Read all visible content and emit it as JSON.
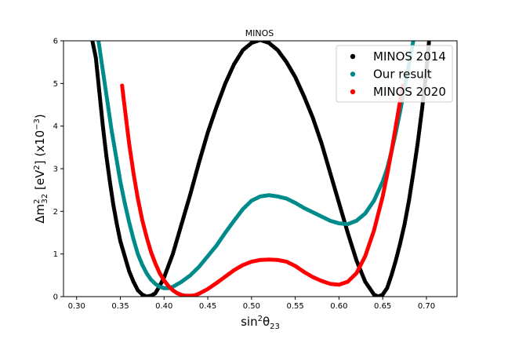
{
  "chart_data": {
    "type": "scatter",
    "title": "MINOS",
    "xlabel": "sin²θ₂₃",
    "ylabel": "Δm²₃₂ [eV²] (x10⁻³)",
    "xlim": [
      0.285,
      0.735
    ],
    "ylim": [
      0,
      6
    ],
    "x_ticks": [
      "0.30",
      "0.35",
      "0.40",
      "0.45",
      "0.50",
      "0.55",
      "0.60",
      "0.65",
      "0.70"
    ],
    "x_tick_values": [
      0.3,
      0.35,
      0.4,
      0.45,
      0.5,
      0.55,
      0.6,
      0.65,
      0.7
    ],
    "y_ticks": [
      "0",
      "1",
      "2",
      "3",
      "4",
      "5",
      "6"
    ],
    "y_tick_values": [
      0,
      1,
      2,
      3,
      4,
      5,
      6
    ],
    "grid": false,
    "legend_position": "top-right",
    "series": [
      {
        "name": "MINOS 2014",
        "color": "#000000",
        "points": [
          [
            0.318,
            6.0
          ],
          [
            0.322,
            5.6
          ],
          [
            0.326,
            4.8
          ],
          [
            0.33,
            4.0
          ],
          [
            0.334,
            3.3
          ],
          [
            0.338,
            2.7
          ],
          [
            0.342,
            2.15
          ],
          [
            0.346,
            1.7
          ],
          [
            0.35,
            1.3
          ],
          [
            0.355,
            0.95
          ],
          [
            0.36,
            0.6
          ],
          [
            0.365,
            0.35
          ],
          [
            0.37,
            0.15
          ],
          [
            0.375,
            0.05
          ],
          [
            0.38,
            0.0
          ],
          [
            0.385,
            0.02
          ],
          [
            0.39,
            0.08
          ],
          [
            0.395,
            0.25
          ],
          [
            0.4,
            0.45
          ],
          [
            0.41,
            1.0
          ],
          [
            0.42,
            1.7
          ],
          [
            0.43,
            2.4
          ],
          [
            0.44,
            3.15
          ],
          [
            0.45,
            3.85
          ],
          [
            0.46,
            4.45
          ],
          [
            0.47,
            5.0
          ],
          [
            0.48,
            5.45
          ],
          [
            0.49,
            5.78
          ],
          [
            0.5,
            5.95
          ],
          [
            0.51,
            6.02
          ],
          [
            0.52,
            5.95
          ],
          [
            0.53,
            5.78
          ],
          [
            0.54,
            5.5
          ],
          [
            0.55,
            5.15
          ],
          [
            0.56,
            4.7
          ],
          [
            0.57,
            4.2
          ],
          [
            0.58,
            3.6
          ],
          [
            0.59,
            2.9
          ],
          [
            0.6,
            2.2
          ],
          [
            0.61,
            1.5
          ],
          [
            0.62,
            0.85
          ],
          [
            0.63,
            0.35
          ],
          [
            0.64,
            0.05
          ],
          [
            0.645,
            0.0
          ],
          [
            0.65,
            0.05
          ],
          [
            0.655,
            0.2
          ],
          [
            0.66,
            0.5
          ],
          [
            0.665,
            0.85
          ],
          [
            0.67,
            1.25
          ],
          [
            0.675,
            1.7
          ],
          [
            0.68,
            2.25
          ],
          [
            0.685,
            2.9
          ],
          [
            0.69,
            3.6
          ],
          [
            0.695,
            4.4
          ],
          [
            0.7,
            5.3
          ],
          [
            0.703,
            6.0
          ]
        ]
      },
      {
        "name": "Our result",
        "color": "#008b8b",
        "points": [
          [
            0.325,
            6.0
          ],
          [
            0.33,
            5.3
          ],
          [
            0.335,
            4.6
          ],
          [
            0.34,
            3.9
          ],
          [
            0.345,
            3.3
          ],
          [
            0.35,
            2.7
          ],
          [
            0.355,
            2.2
          ],
          [
            0.36,
            1.75
          ],
          [
            0.365,
            1.35
          ],
          [
            0.37,
            1.0
          ],
          [
            0.375,
            0.75
          ],
          [
            0.38,
            0.55
          ],
          [
            0.385,
            0.4
          ],
          [
            0.39,
            0.3
          ],
          [
            0.395,
            0.23
          ],
          [
            0.4,
            0.2
          ],
          [
            0.405,
            0.2
          ],
          [
            0.41,
            0.23
          ],
          [
            0.42,
            0.35
          ],
          [
            0.43,
            0.5
          ],
          [
            0.44,
            0.7
          ],
          [
            0.45,
            0.95
          ],
          [
            0.46,
            1.2
          ],
          [
            0.47,
            1.5
          ],
          [
            0.48,
            1.78
          ],
          [
            0.49,
            2.05
          ],
          [
            0.5,
            2.25
          ],
          [
            0.51,
            2.35
          ],
          [
            0.52,
            2.38
          ],
          [
            0.53,
            2.35
          ],
          [
            0.54,
            2.3
          ],
          [
            0.55,
            2.2
          ],
          [
            0.56,
            2.08
          ],
          [
            0.57,
            1.98
          ],
          [
            0.58,
            1.88
          ],
          [
            0.59,
            1.78
          ],
          [
            0.6,
            1.72
          ],
          [
            0.61,
            1.7
          ],
          [
            0.62,
            1.78
          ],
          [
            0.63,
            1.95
          ],
          [
            0.64,
            2.25
          ],
          [
            0.65,
            2.7
          ],
          [
            0.655,
            3.0
          ],
          [
            0.66,
            3.4
          ],
          [
            0.665,
            3.85
          ],
          [
            0.67,
            4.35
          ],
          [
            0.675,
            4.9
          ],
          [
            0.68,
            5.45
          ],
          [
            0.685,
            6.0
          ]
        ]
      },
      {
        "name": "MINOS 2020",
        "color": "#ff0000",
        "points": [
          [
            0.352,
            4.95
          ],
          [
            0.354,
            4.6
          ],
          [
            0.357,
            4.1
          ],
          [
            0.36,
            3.6
          ],
          [
            0.365,
            2.9
          ],
          [
            0.37,
            2.3
          ],
          [
            0.375,
            1.8
          ],
          [
            0.38,
            1.4
          ],
          [
            0.385,
            1.05
          ],
          [
            0.39,
            0.78
          ],
          [
            0.395,
            0.55
          ],
          [
            0.4,
            0.38
          ],
          [
            0.405,
            0.25
          ],
          [
            0.41,
            0.15
          ],
          [
            0.415,
            0.08
          ],
          [
            0.42,
            0.04
          ],
          [
            0.425,
            0.02
          ],
          [
            0.43,
            0.02
          ],
          [
            0.435,
            0.03
          ],
          [
            0.44,
            0.07
          ],
          [
            0.45,
            0.18
          ],
          [
            0.46,
            0.32
          ],
          [
            0.47,
            0.47
          ],
          [
            0.48,
            0.62
          ],
          [
            0.49,
            0.74
          ],
          [
            0.5,
            0.82
          ],
          [
            0.51,
            0.86
          ],
          [
            0.52,
            0.87
          ],
          [
            0.53,
            0.86
          ],
          [
            0.54,
            0.82
          ],
          [
            0.55,
            0.72
          ],
          [
            0.56,
            0.58
          ],
          [
            0.57,
            0.46
          ],
          [
            0.58,
            0.37
          ],
          [
            0.59,
            0.3
          ],
          [
            0.6,
            0.28
          ],
          [
            0.61,
            0.35
          ],
          [
            0.62,
            0.55
          ],
          [
            0.63,
            0.95
          ],
          [
            0.64,
            1.55
          ],
          [
            0.65,
            2.35
          ],
          [
            0.655,
            2.85
          ],
          [
            0.66,
            3.4
          ],
          [
            0.665,
            4.0
          ],
          [
            0.67,
            4.6
          ],
          [
            0.673,
            4.95
          ]
        ]
      }
    ]
  }
}
